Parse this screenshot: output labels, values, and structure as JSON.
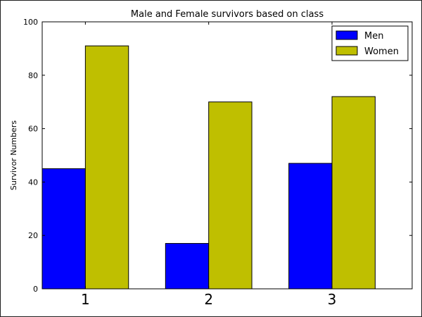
{
  "chart_data": {
    "type": "bar",
    "title": "Male and Female survivors based on class",
    "xlabel": "",
    "ylabel": "Survivor Numbers",
    "categories": [
      "1",
      "2",
      "3"
    ],
    "series": [
      {
        "name": "Men",
        "values": [
          45,
          17,
          47
        ],
        "color": "#0000ff"
      },
      {
        "name": "Women",
        "values": [
          91,
          70,
          72
        ],
        "color": "#bfbf00"
      }
    ],
    "ylim": [
      0,
      100
    ],
    "yticks": [
      0,
      20,
      40,
      60,
      80,
      100
    ],
    "grid": false,
    "legend_position": "top-right"
  }
}
